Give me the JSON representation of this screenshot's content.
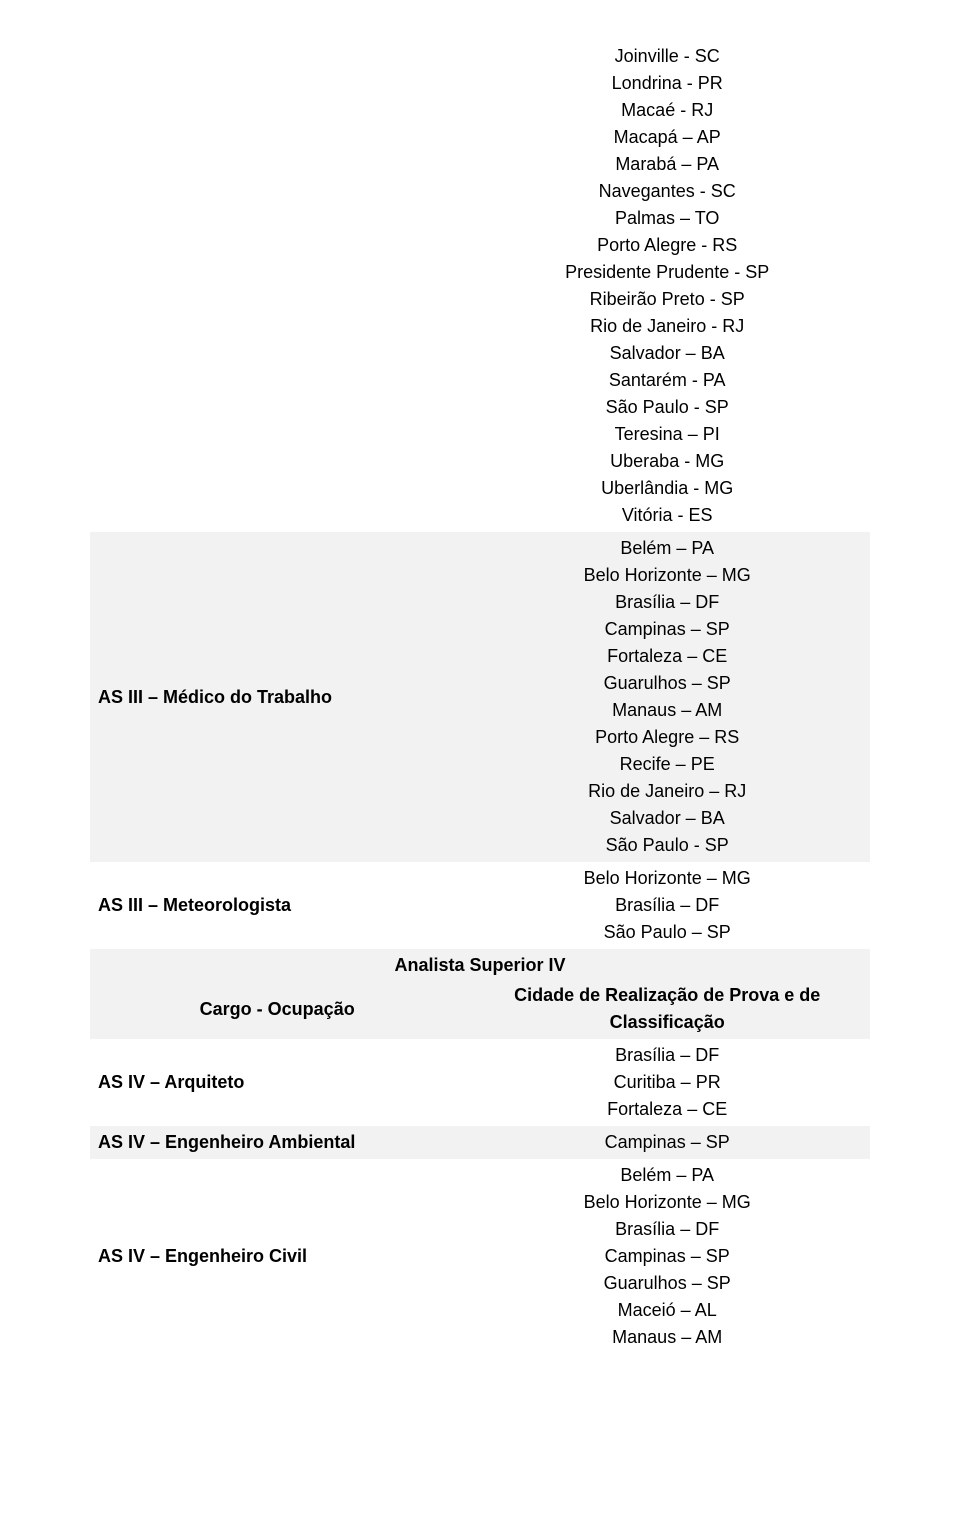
{
  "text_color": "#000000",
  "background_color": "#ffffff",
  "shade_color": "#f2f2f2",
  "font_size_pt": 14,
  "table1": {
    "rows": [
      {
        "label": "",
        "shade": false,
        "cities": [
          "Joinville - SC",
          "Londrina - PR",
          "Macaé - RJ",
          "Macapá – AP",
          "Marabá – PA",
          "Navegantes - SC",
          "Palmas – TO",
          "Porto Alegre - RS",
          "Presidente Prudente - SP",
          "Ribeirão Preto - SP",
          "Rio de Janeiro - RJ",
          "Salvador – BA",
          "Santarém - PA",
          "São Paulo - SP",
          "Teresina – PI",
          "Uberaba - MG",
          "Uberlândia - MG",
          "Vitória - ES"
        ]
      },
      {
        "label": "AS III – Médico do Trabalho",
        "shade": true,
        "cities": [
          "Belém – PA",
          "Belo Horizonte – MG",
          "Brasília – DF",
          "Campinas – SP",
          "Fortaleza – CE",
          "Guarulhos – SP",
          "Manaus – AM",
          "Porto Alegre – RS",
          "Recife – PE",
          "Rio de Janeiro – RJ",
          "Salvador – BA",
          "São Paulo - SP"
        ]
      },
      {
        "label": "AS III – Meteorologista",
        "shade": false,
        "cities": [
          "Belo Horizonte – MG",
          "Brasília – DF",
          "São Paulo – SP"
        ]
      }
    ]
  },
  "section2": {
    "title": "Analista Superior IV",
    "header_left": "Cargo - Ocupação",
    "header_right": "Cidade de Realização de Prova e de Classificação",
    "rows": [
      {
        "label": "AS IV – Arquiteto",
        "shade": false,
        "cities": [
          "Brasília – DF",
          "Curitiba – PR",
          "Fortaleza – CE"
        ]
      },
      {
        "label": "AS IV – Engenheiro Ambiental",
        "shade": true,
        "cities": [
          "Campinas – SP"
        ]
      },
      {
        "label": "AS IV – Engenheiro Civil",
        "shade": false,
        "cities": [
          "Belém – PA",
          "Belo Horizonte – MG",
          "Brasília – DF",
          "Campinas – SP",
          "Guarulhos – SP",
          "Maceió – AL",
          "Manaus – AM"
        ]
      }
    ]
  }
}
